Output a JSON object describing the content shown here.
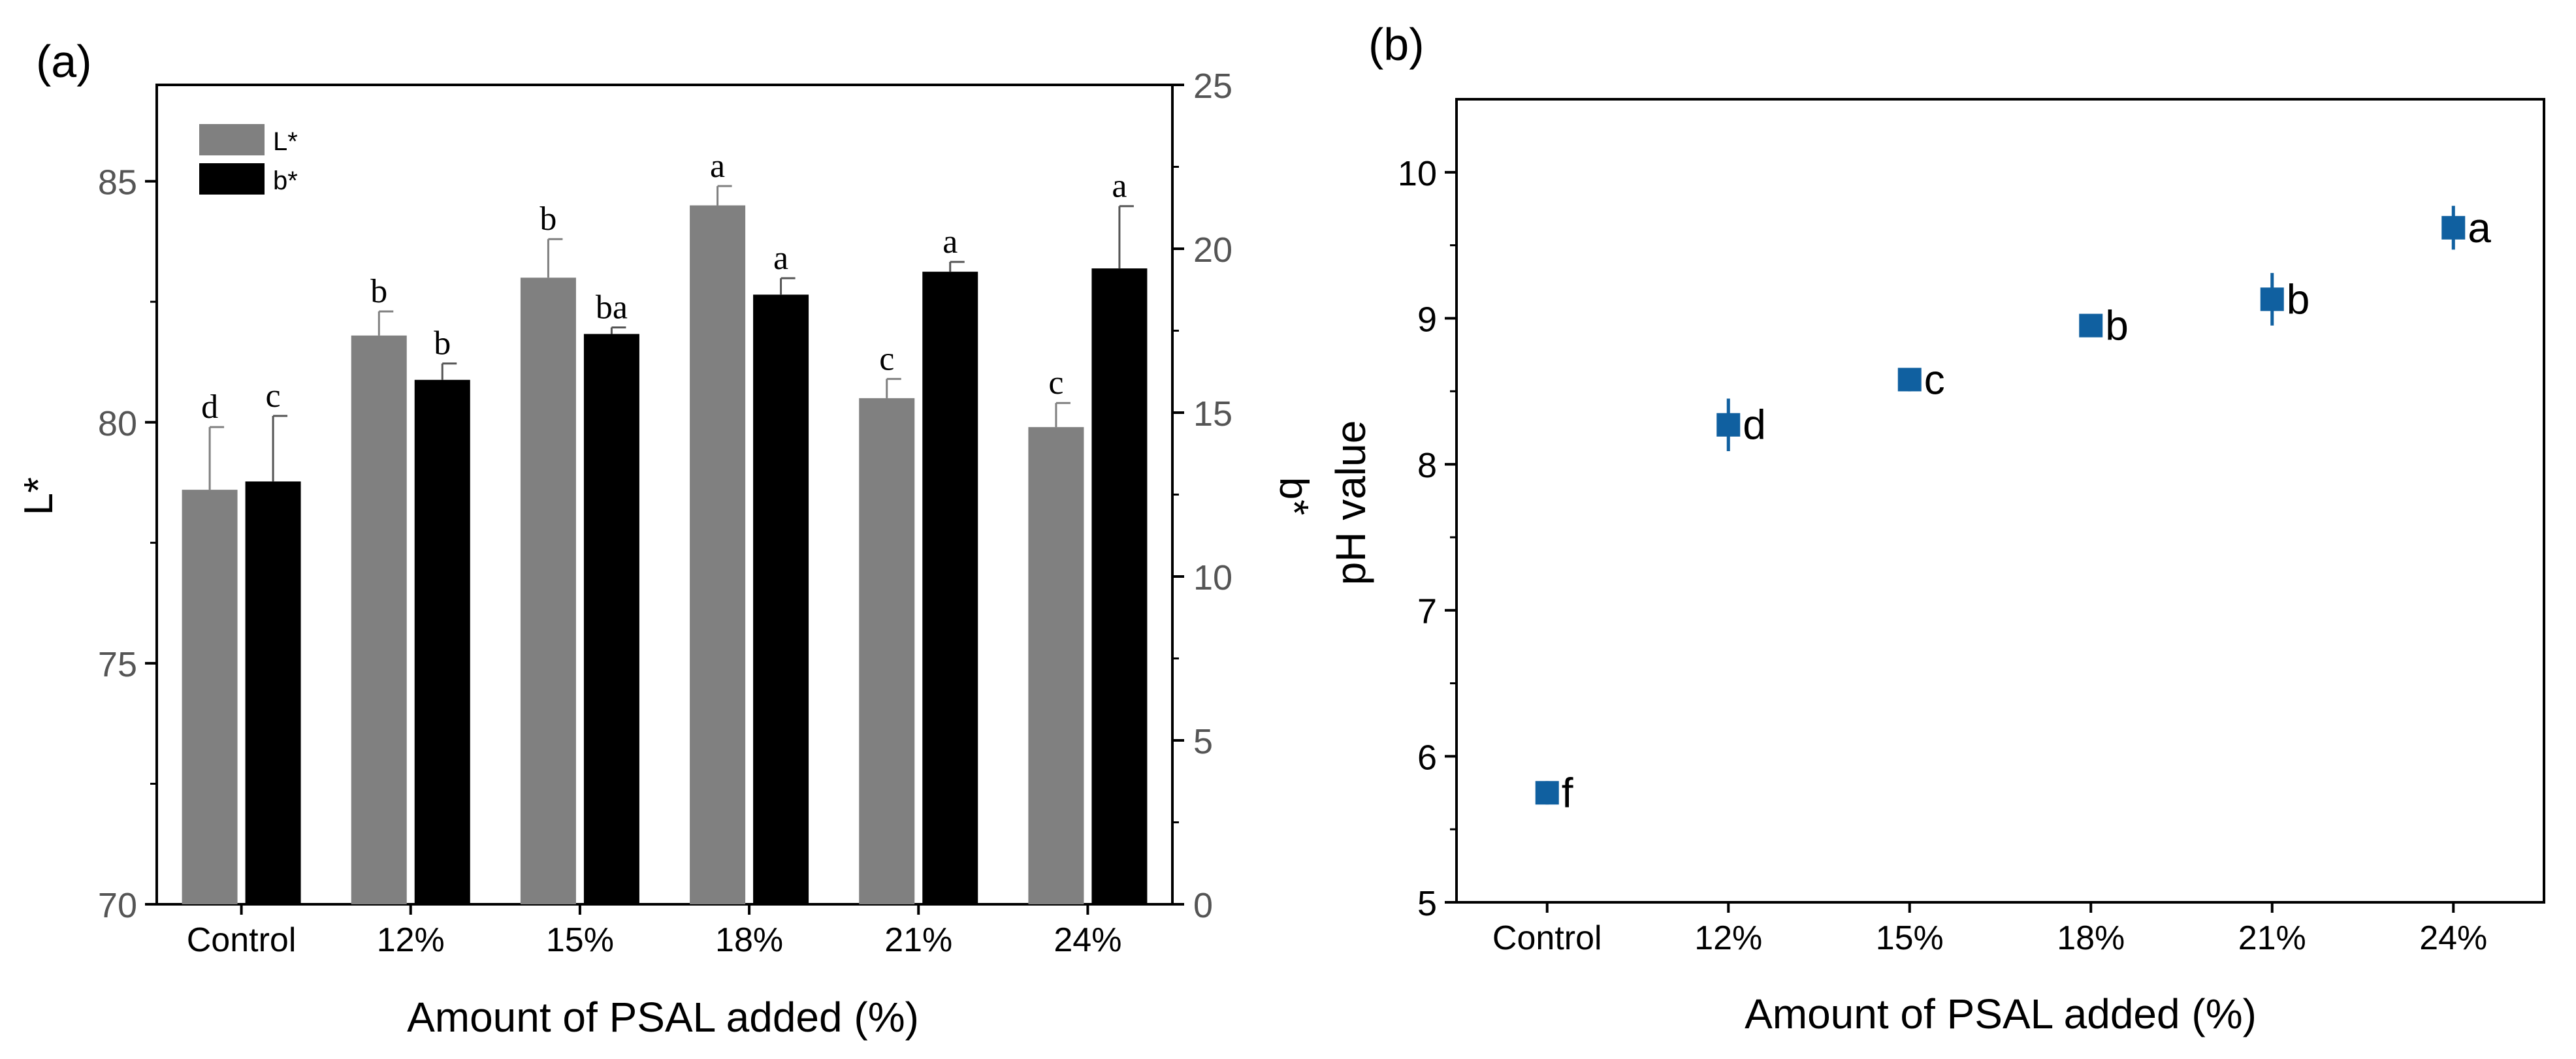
{
  "chart_data": [
    {
      "type": "bar",
      "panel_label": "(a)",
      "xlabel": "Amount of PSAL added (%)",
      "ylabel_left": "L*",
      "ylabel_right": "b*",
      "categories": [
        "Control",
        "12%",
        "15%",
        "18%",
        "21%",
        "24%"
      ],
      "ylim_left": [
        70,
        87
      ],
      "ylim_right": [
        0,
        25
      ],
      "yticks_left": [
        70,
        75,
        80,
        85
      ],
      "yticks_right": [
        0,
        5,
        10,
        15,
        20,
        25
      ],
      "legend_placement": "top-left",
      "grid": false,
      "series": [
        {
          "name": "L*",
          "axis": "left",
          "color": "#808080",
          "values": [
            78.6,
            81.8,
            83.0,
            84.5,
            80.5,
            79.9
          ],
          "errors": [
            1.3,
            0.5,
            0.8,
            0.4,
            0.4,
            0.5
          ],
          "letters": [
            "d",
            "b",
            "b",
            "a",
            "c",
            "c"
          ]
        },
        {
          "name": "b*",
          "axis": "right",
          "color": "#000000",
          "values": [
            12.9,
            16.0,
            17.4,
            18.6,
            19.3,
            19.4
          ],
          "errors": [
            2.0,
            0.5,
            0.2,
            0.5,
            0.3,
            1.9
          ],
          "letters": [
            "c",
            "b",
            "ba",
            "a",
            "a",
            "a"
          ]
        }
      ]
    },
    {
      "type": "scatter",
      "panel_label": "(b)",
      "xlabel": "Amount of PSAL added (%)",
      "ylabel": "pH value",
      "categories": [
        "Control",
        "12%",
        "15%",
        "18%",
        "21%",
        "24%"
      ],
      "ylim": [
        5,
        10.5
      ],
      "yticks": [
        5,
        6,
        7,
        8,
        9,
        10
      ],
      "grid": false,
      "series": [
        {
          "color": "#1060a0",
          "values": [
            5.75,
            8.27,
            8.58,
            8.95,
            9.13,
            9.62
          ],
          "errors": [
            0.08,
            0.18,
            0.08,
            0.05,
            0.18,
            0.15
          ],
          "letters": [
            "f",
            "d",
            "c",
            "b",
            "b",
            "a"
          ]
        }
      ]
    }
  ]
}
